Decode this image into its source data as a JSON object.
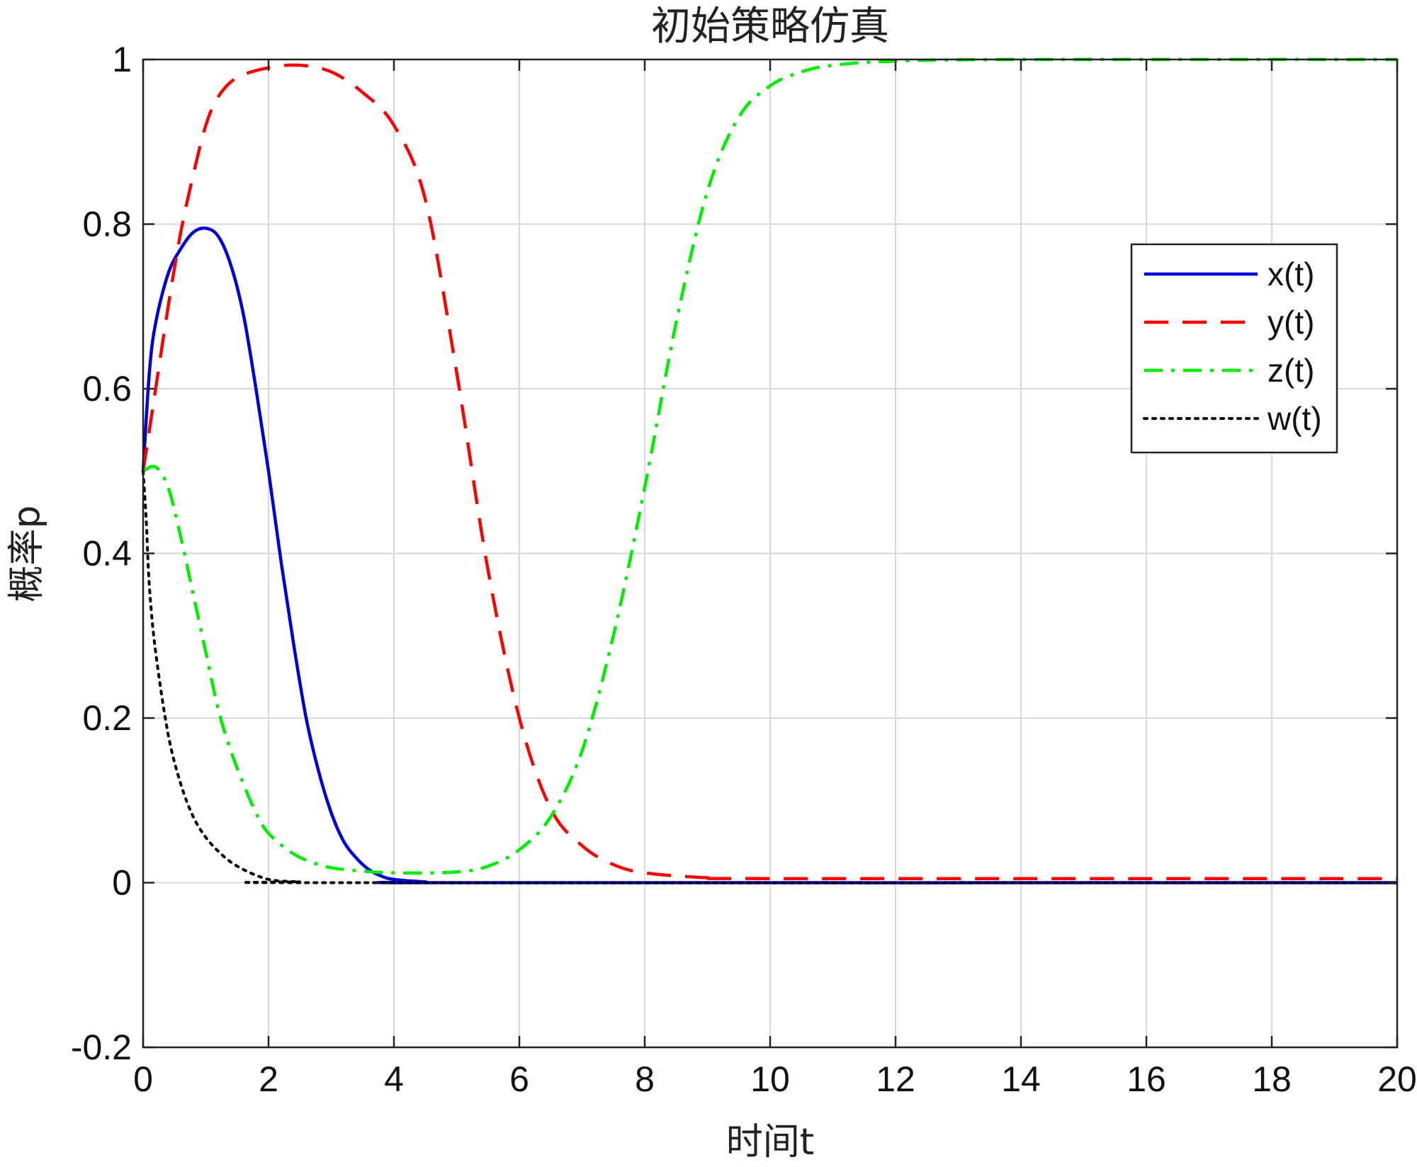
{
  "chart_data": {
    "type": "line",
    "title": "初始策略仿真",
    "xlabel": "时间t",
    "ylabel": "概率p",
    "xlim": [
      0,
      20
    ],
    "ylim": [
      -0.2,
      1
    ],
    "xticks": [
      0,
      2,
      4,
      6,
      8,
      10,
      12,
      14,
      16,
      18,
      20
    ],
    "yticks": [
      -0.2,
      0,
      0.2,
      0.4,
      0.6,
      0.8,
      1
    ],
    "xtick_labels": [
      "0",
      "2",
      "4",
      "6",
      "8",
      "10",
      "12",
      "14",
      "16",
      "18",
      "20"
    ],
    "ytick_labels": [
      "-0.2",
      "0",
      "0.2",
      "0.4",
      "0.6",
      "0.8",
      "1"
    ],
    "grid": true,
    "legend_position": "top-right",
    "series": [
      {
        "name": "x(t)",
        "color": "#0000dd",
        "style": "solid",
        "points": [
          [
            0,
            0.5
          ],
          [
            0.1,
            0.62
          ],
          [
            0.2,
            0.68
          ],
          [
            0.4,
            0.74
          ],
          [
            0.6,
            0.77
          ],
          [
            0.8,
            0.79
          ],
          [
            1.0,
            0.795
          ],
          [
            1.2,
            0.785
          ],
          [
            1.4,
            0.75
          ],
          [
            1.6,
            0.69
          ],
          [
            1.8,
            0.6
          ],
          [
            2.0,
            0.5
          ],
          [
            2.2,
            0.39
          ],
          [
            2.4,
            0.29
          ],
          [
            2.6,
            0.2
          ],
          [
            2.8,
            0.135
          ],
          [
            3.0,
            0.085
          ],
          [
            3.2,
            0.05
          ],
          [
            3.4,
            0.03
          ],
          [
            3.6,
            0.016
          ],
          [
            3.8,
            0.008
          ],
          [
            4.0,
            0.004
          ],
          [
            4.5,
            0.001
          ],
          [
            5,
            0
          ],
          [
            20,
            0
          ]
        ]
      },
      {
        "name": "y(t)",
        "color": "#ff0000",
        "style": "dashed",
        "points": [
          [
            0,
            0.5
          ],
          [
            0.1,
            0.55
          ],
          [
            0.2,
            0.6
          ],
          [
            0.4,
            0.7
          ],
          [
            0.6,
            0.79
          ],
          [
            0.8,
            0.86
          ],
          [
            1.0,
            0.92
          ],
          [
            1.2,
            0.955
          ],
          [
            1.5,
            0.978
          ],
          [
            2.0,
            0.99
          ],
          [
            2.5,
            0.993
          ],
          [
            3.0,
            0.985
          ],
          [
            3.5,
            0.96
          ],
          [
            4.0,
            0.92
          ],
          [
            4.5,
            0.83
          ],
          [
            5.0,
            0.62
          ],
          [
            5.5,
            0.38
          ],
          [
            6.0,
            0.2
          ],
          [
            6.5,
            0.09
          ],
          [
            7.0,
            0.045
          ],
          [
            7.5,
            0.022
          ],
          [
            8.0,
            0.012
          ],
          [
            9.0,
            0.006
          ],
          [
            10,
            0.005
          ],
          [
            20,
            0.005
          ]
        ]
      },
      {
        "name": "z(t)",
        "color": "#00ee00",
        "style": "dashdot",
        "points": [
          [
            0,
            0.5
          ],
          [
            0.2,
            0.505
          ],
          [
            0.4,
            0.48
          ],
          [
            0.6,
            0.42
          ],
          [
            0.8,
            0.35
          ],
          [
            1.0,
            0.28
          ],
          [
            1.2,
            0.21
          ],
          [
            1.4,
            0.16
          ],
          [
            1.6,
            0.12
          ],
          [
            1.8,
            0.085
          ],
          [
            2.0,
            0.06
          ],
          [
            2.4,
            0.035
          ],
          [
            2.8,
            0.022
          ],
          [
            3.2,
            0.016
          ],
          [
            4.0,
            0.012
          ],
          [
            5.0,
            0.013
          ],
          [
            5.5,
            0.02
          ],
          [
            6.0,
            0.04
          ],
          [
            6.5,
            0.08
          ],
          [
            7.0,
            0.16
          ],
          [
            7.5,
            0.3
          ],
          [
            8.0,
            0.48
          ],
          [
            8.5,
            0.68
          ],
          [
            9.0,
            0.84
          ],
          [
            9.5,
            0.93
          ],
          [
            10,
            0.968
          ],
          [
            10.5,
            0.985
          ],
          [
            11,
            0.993
          ],
          [
            12,
            0.998
          ],
          [
            14,
            1.0
          ],
          [
            20,
            1.0
          ]
        ]
      },
      {
        "name": "w(t)",
        "color": "#000000",
        "style": "dotted",
        "points": [
          [
            0,
            0.5
          ],
          [
            0.05,
            0.44
          ],
          [
            0.1,
            0.36
          ],
          [
            0.2,
            0.28
          ],
          [
            0.4,
            0.18
          ],
          [
            0.6,
            0.12
          ],
          [
            0.8,
            0.08
          ],
          [
            1.0,
            0.055
          ],
          [
            1.2,
            0.038
          ],
          [
            1.4,
            0.025
          ],
          [
            1.6,
            0.016
          ],
          [
            1.8,
            0.009
          ],
          [
            2.0,
            0.004
          ],
          [
            2.2,
            0.002
          ],
          [
            2.5,
            0.001
          ],
          [
            3,
            0
          ],
          [
            20,
            0
          ]
        ]
      }
    ]
  }
}
